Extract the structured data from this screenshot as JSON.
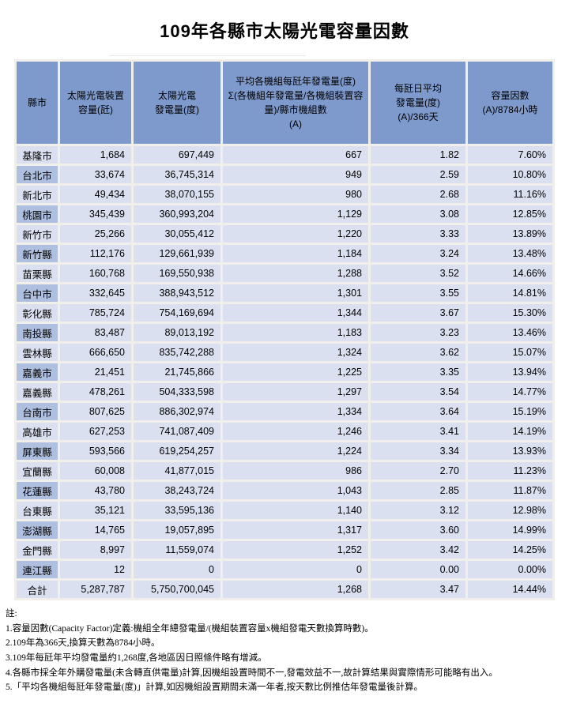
{
  "title": "109年各縣市太陽光電容量因數",
  "table": {
    "headers": [
      "縣市",
      "太陽光電裝置\n容量(瓩)",
      "太陽光電\n發電量(度)",
      "平均各機組每瓩年發電量(度)\nΣ(各機組年發電量/各機組裝置容量)/縣市機組數\n(A)",
      "每瓩日平均\n發電量(度)\n(A)/366天",
      "容量因數\n(A)/8784小時"
    ],
    "rows": [
      [
        "基隆市",
        "1,684",
        "697,449",
        "667",
        "1.82",
        "7.60%"
      ],
      [
        "台北市",
        "33,674",
        "36,745,314",
        "949",
        "2.59",
        "10.80%"
      ],
      [
        "新北市",
        "49,434",
        "38,070,155",
        "980",
        "2.68",
        "11.16%"
      ],
      [
        "桃園市",
        "345,439",
        "360,993,204",
        "1,129",
        "3.08",
        "12.85%"
      ],
      [
        "新竹市",
        "25,266",
        "30,055,412",
        "1,220",
        "3.33",
        "13.89%"
      ],
      [
        "新竹縣",
        "112,176",
        "129,661,939",
        "1,184",
        "3.24",
        "13.48%"
      ],
      [
        "苗栗縣",
        "160,768",
        "169,550,938",
        "1,288",
        "3.52",
        "14.66%"
      ],
      [
        "台中市",
        "332,645",
        "388,943,512",
        "1,301",
        "3.55",
        "14.81%"
      ],
      [
        "彰化縣",
        "785,724",
        "754,169,694",
        "1,344",
        "3.67",
        "15.30%"
      ],
      [
        "南投縣",
        "83,487",
        "89,013,192",
        "1,183",
        "3.23",
        "13.46%"
      ],
      [
        "雲林縣",
        "666,650",
        "835,742,288",
        "1,324",
        "3.62",
        "15.07%"
      ],
      [
        "嘉義市",
        "21,451",
        "21,745,866",
        "1,225",
        "3.35",
        "13.94%"
      ],
      [
        "嘉義縣",
        "478,261",
        "504,333,598",
        "1,297",
        "3.54",
        "14.77%"
      ],
      [
        "台南市",
        "807,625",
        "886,302,974",
        "1,334",
        "3.64",
        "15.19%"
      ],
      [
        "高雄市",
        "627,253",
        "741,087,409",
        "1,246",
        "3.41",
        "14.19%"
      ],
      [
        "屏東縣",
        "593,566",
        "619,254,257",
        "1,224",
        "3.34",
        "13.93%"
      ],
      [
        "宜蘭縣",
        "60,008",
        "41,877,015",
        "986",
        "2.70",
        "11.23%"
      ],
      [
        "花蓮縣",
        "43,780",
        "38,243,724",
        "1,043",
        "2.85",
        "11.87%"
      ],
      [
        "台東縣",
        "35,121",
        "33,595,136",
        "1,140",
        "3.12",
        "12.98%"
      ],
      [
        "澎湖縣",
        "14,765",
        "19,057,895",
        "1,317",
        "3.60",
        "14.99%"
      ],
      [
        "金門縣",
        "8,997",
        "11,559,074",
        "1,252",
        "3.42",
        "14.25%"
      ],
      [
        "連江縣",
        "12",
        "0",
        "0",
        "0.00",
        "0.00%"
      ]
    ],
    "total_row": [
      "合計",
      "5,287,787",
      "5,750,700,045",
      "1,268",
      "3.47",
      "14.44%"
    ]
  },
  "notes": {
    "label": "註:",
    "items": [
      "1.容量因數(Capacity Factor)定義:機組全年總發電量/(機組裝置容量x機組發電天數換算時數)。",
      "2.109年為366天,換算天數為8784小時。",
      "3.109年每瓩年平均發電量約1,268度,各地區因日照條件略有增減。",
      "4.各縣市採全年外購發電量(未含轉直供電量)計算,因機組設置時間不一,發電效益不一,故計算結果與實際情形可能略有出入。",
      "5.「平均各機組每瓩年發電量(度)」計算,如因機組設置期間未滿一年者,按天數比例推估年發電量後計算。"
    ]
  },
  "colors": {
    "header_bg": "#7E9ACD",
    "cell_bg": "#DAE0F0",
    "alt_county_bg": "#AFBFE0",
    "table_gap_bg": "#F0EFEA",
    "text": "#000000"
  }
}
